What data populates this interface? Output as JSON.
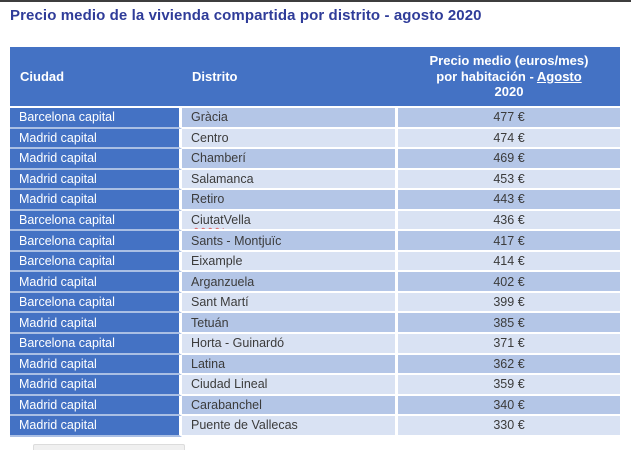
{
  "page": {
    "title": "Precio medio de la vivienda compartida por distrito - agosto 2020"
  },
  "table": {
    "headers": {
      "city": "Ciudad",
      "district": "Distrito",
      "price_line1": "Precio medio (euros/mes)",
      "price_line2_prefix": "por habitación - ",
      "price_line2_underlined": "Agosto",
      "price_line3": "2020"
    },
    "rows": [
      {
        "city": "Barcelona capital",
        "district": "Gràcia",
        "price": "477 €"
      },
      {
        "city": "Madrid capital",
        "district": "Centro",
        "price": "474 €"
      },
      {
        "city": "Madrid capital",
        "district": "Chamberí",
        "price": "469 €"
      },
      {
        "city": "Madrid capital",
        "district": "Salamanca",
        "price": "453 €"
      },
      {
        "city": "Madrid capital",
        "district": "Retiro",
        "price": "443 €"
      },
      {
        "city": "Barcelona capital",
        "district": "Ciutat Vella",
        "price": "436 €",
        "spellcheck_word": "Ciutat"
      },
      {
        "city": "Barcelona capital",
        "district": "Sants - Montjuïc",
        "price": "417 €"
      },
      {
        "city": "Barcelona capital",
        "district": "Eixample",
        "price": "414 €"
      },
      {
        "city": "Madrid capital",
        "district": "Arganzuela",
        "price": "402 €"
      },
      {
        "city": "Barcelona capital",
        "district": "Sant Martí",
        "price": "399 €"
      },
      {
        "city": "Madrid capital",
        "district": "Tetuán",
        "price": "385 €"
      },
      {
        "city": "Barcelona capital",
        "district": "Horta - Guinardó",
        "price": "371 €"
      },
      {
        "city": "Madrid capital",
        "district": "Latina",
        "price": "362 €"
      },
      {
        "city": "Madrid capital",
        "district": "Ciudad Lineal",
        "price": "359 €"
      },
      {
        "city": "Madrid capital",
        "district": "Carabanchel",
        "price": "340 €"
      },
      {
        "city": "Madrid capital",
        "district": "Puente de Vallecas",
        "price": "330 €"
      }
    ],
    "colors": {
      "title": "#2F3C99",
      "header_bg": "#4472C4",
      "band_dark": "#B4C6E7",
      "band_light": "#D9E2F3",
      "cell_text": "#3B3B3B",
      "header_text": "#FFFFFF",
      "spellcheck_underline": "#E06666"
    }
  }
}
